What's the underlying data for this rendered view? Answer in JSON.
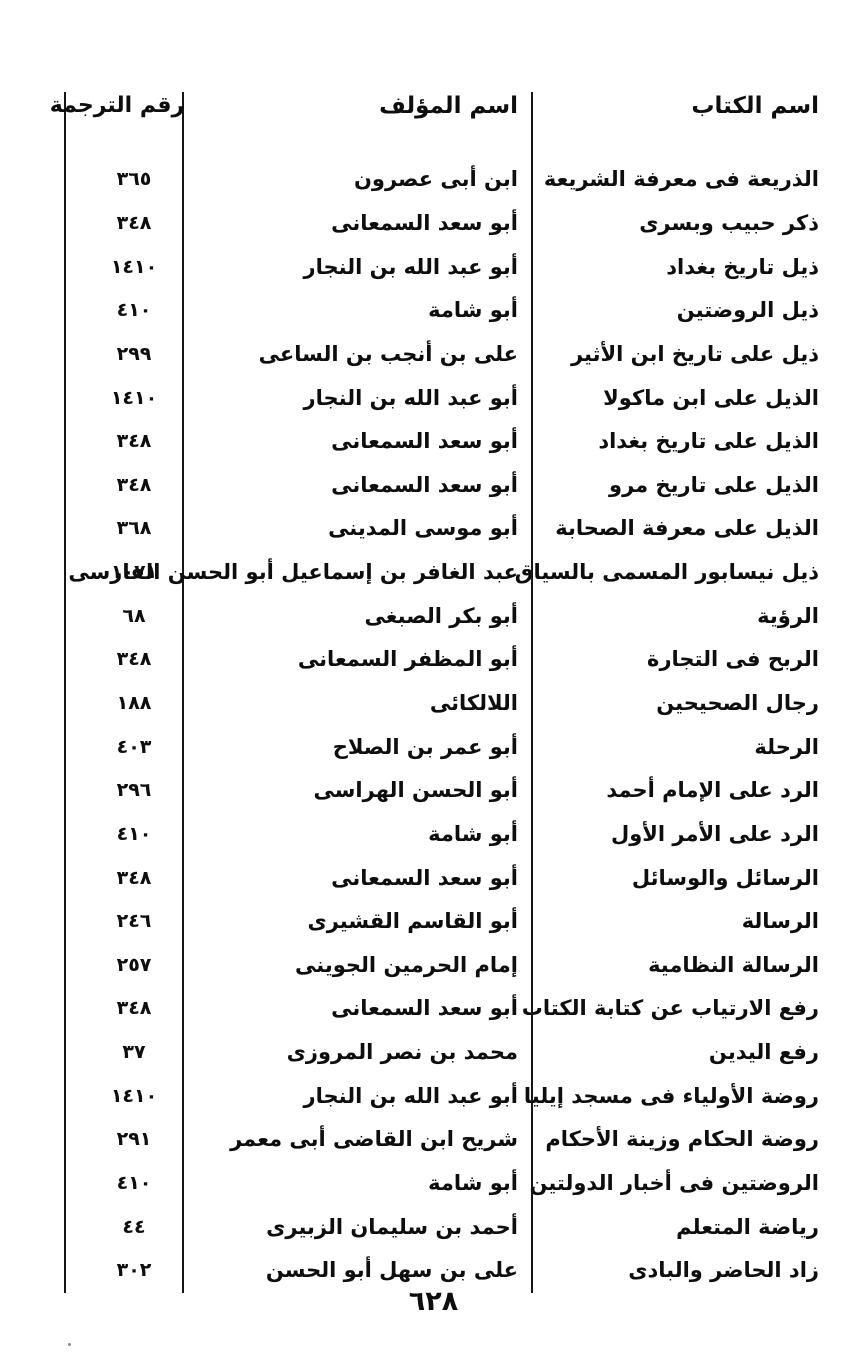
{
  "page": {
    "page_number": "٦٢٨",
    "background_color": "#ffffff",
    "text_color": "#0e0e0e",
    "rule_color": "#161616"
  },
  "table": {
    "headers": {
      "book": "اسم الكتاب",
      "author": "اسم المؤلف",
      "number": "رقم الترجمة"
    },
    "rows": [
      {
        "book": "الذريعة فى معرفة الشريعة",
        "author": "ابن أبى عصرون",
        "number": "٣٦٥"
      },
      {
        "book": "ذكر حبيب وبسرى",
        "author": "أبو سعد السمعانى",
        "number": "٣٤٨"
      },
      {
        "book": "ذيل تاريخ بغداد",
        "author": "أبو عبد الله بن النجار",
        "number": "١٤١٠"
      },
      {
        "book": "ذيل الروضتين",
        "author": "أبو شامة",
        "number": "٤١٠"
      },
      {
        "book": "ذيل على تاريخ ابن الأثير",
        "author": "على بن أنجب بن الساعى",
        "number": "٢٩٩"
      },
      {
        "book": "الذيل على ابن ماكولا",
        "author": "أبو عبد الله بن النجار",
        "number": "١٤١٠"
      },
      {
        "book": "الذيل على تاريخ بغداد",
        "author": "أبو سعد السمعانى",
        "number": "٣٤٨"
      },
      {
        "book": "الذيل على تاريخ مرو",
        "author": "أبو سعد السمعانى",
        "number": "٣٤٨"
      },
      {
        "book": "الذيل على معرفة الصحابة",
        "author": "أبو موسى المدينى",
        "number": "٣٦٨"
      },
      {
        "book": "ذيل نيسابور المسمى بالسياق",
        "author": "عبد الغافر بن إسماعيل أبو الحسن الفارسى",
        "number": "١٠٧١"
      },
      {
        "book": "الرؤية",
        "author": "أبو بكر الصبغى",
        "number": "٦٨"
      },
      {
        "book": "الربح فى التجارة",
        "author": "أبو المظفر السمعانى",
        "number": "٣٤٨"
      },
      {
        "book": "رجال الصحيحين",
        "author": "اللالكائى",
        "number": "١٨٨"
      },
      {
        "book": "الرحلة",
        "author": "أبو عمر بن الصلاح",
        "number": "٤٠٣"
      },
      {
        "book": "الرد على الإمام أحمد",
        "author": "أبو الحسن الهراسى",
        "number": "٢٩٦"
      },
      {
        "book": "الرد على الأمر الأول",
        "author": "أبو شامة",
        "number": "٤١٠"
      },
      {
        "book": "الرسائل والوسائل",
        "author": "أبو سعد السمعانى",
        "number": "٣٤٨"
      },
      {
        "book": "الرسالة",
        "author": "أبو القاسم القشيرى",
        "number": "٢٤٦"
      },
      {
        "book": "الرسالة النظامية",
        "author": "إمام الحرمين الجوينى",
        "number": "٢٥٧"
      },
      {
        "book": "رفع الارتياب عن كتابة الكتاب",
        "author": "أبو سعد السمعانى",
        "number": "٣٤٨"
      },
      {
        "book": "رفع اليدين",
        "author": "محمد بن نصر المروزى",
        "number": "٣٧"
      },
      {
        "book": "روضة الأولياء فى مسجد إيليا",
        "author": "أبو عبد الله بن النجار",
        "number": "١٤١٠"
      },
      {
        "book": "روضة الحكام وزينة الأحكام",
        "author": "شريح ابن القاضى أبى معمر",
        "number": "٢٩١"
      },
      {
        "book": "الروضتين فى أخبار الدولتين",
        "author": "أبو شامة",
        "number": "٤١٠"
      },
      {
        "book": "رياضة المتعلم",
        "author": "أحمد بن سليمان الزبيرى",
        "number": "٤٤"
      },
      {
        "book": "زاد الحاضر والبادى",
        "author": "على بن سهل أبو الحسن",
        "number": "٣٠٢"
      }
    ]
  }
}
